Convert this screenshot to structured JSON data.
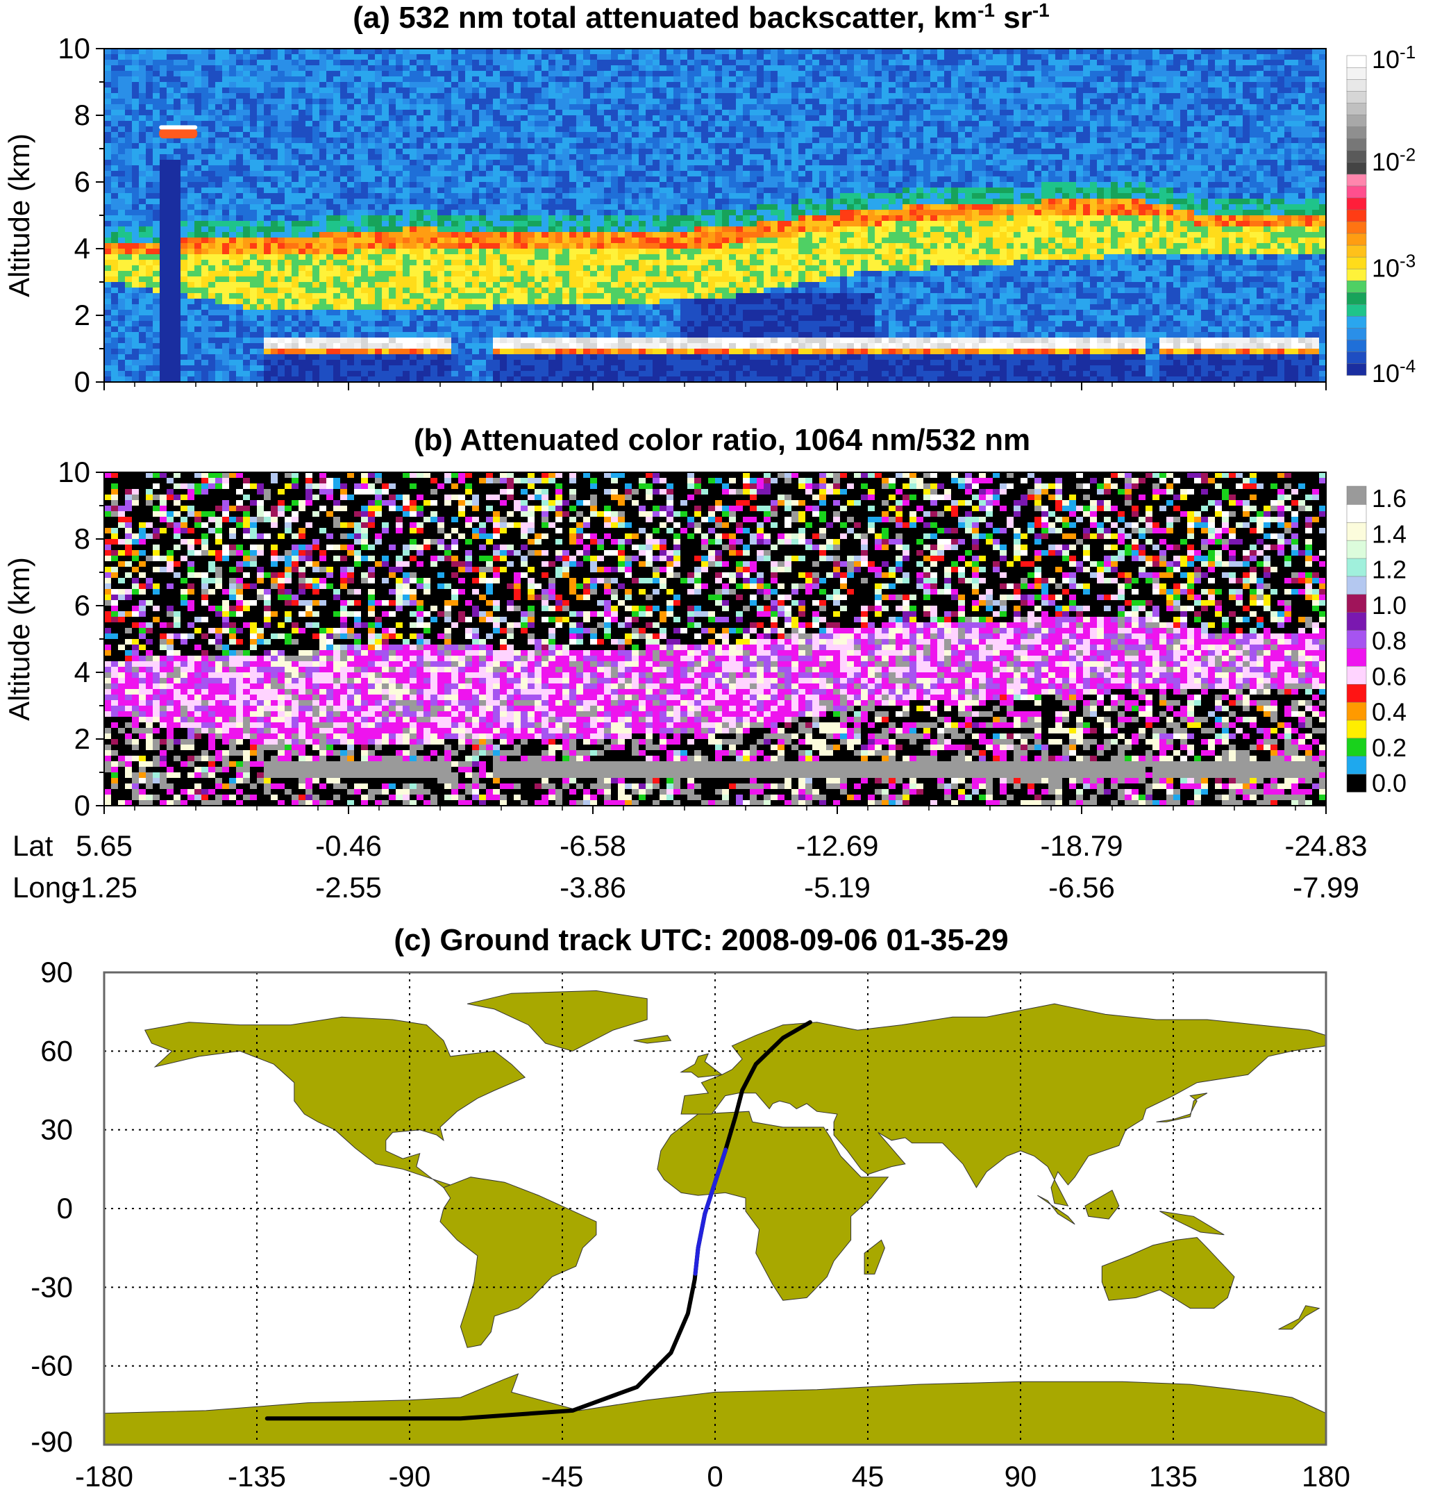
{
  "colors": {
    "plot_border": "#000000",
    "land": "#a8a800",
    "track_black": "#000000",
    "track_blue": "#2222dd",
    "grid": "#000000"
  },
  "chart_data": [
    {
      "id": "panel_a",
      "type": "heatmap",
      "title_prefix": "(a) 532 nm  total  attenuated backscatter, km",
      "title_sup1": "-1",
      "title_mid": " sr",
      "title_sup2": "-1",
      "ylabel": "Altitude (km)",
      "ylim": [
        0,
        10
      ],
      "yticks": [
        "0",
        "2",
        "4",
        "6",
        "8",
        "10"
      ],
      "colorbar": {
        "scale": "log",
        "range": [
          0.0001,
          0.1
        ],
        "labels": [
          {
            "base": "10",
            "exp": "-1",
            "value": 0.1
          },
          {
            "base": "10",
            "exp": "-2",
            "value": 0.01
          },
          {
            "base": "10",
            "exp": "-3",
            "value": 0.001
          },
          {
            "base": "10",
            "exp": "-4",
            "value": 0.0001
          }
        ],
        "colors": [
          "#1a2ea0",
          "#1e4ec2",
          "#1f6fd8",
          "#2a8fe8",
          "#2aa6ee",
          "#1fc48a",
          "#17a35a",
          "#4fd064",
          "#fff23a",
          "#ffdc1a",
          "#ffc11a",
          "#ff9d12",
          "#ff7412",
          "#ff3c14",
          "#ff1e3a",
          "#ff4f8e",
          "#ff86ad",
          "#444444",
          "#5a5a5a",
          "#777777",
          "#8f8f8f",
          "#a8a8a8",
          "#c0c0c0",
          "#d6d6d6",
          "#e8e8e8",
          "#f3f3f3",
          "#ffffff"
        ]
      },
      "features": {
        "aerosol_layer": {
          "base_km": [
            3.0,
            2.2,
            2.2,
            2.3,
            2.5,
            3.3,
            3.6,
            3.8,
            3.8
          ],
          "top_km": [
            4.2,
            4.3,
            4.6,
            4.5,
            4.6,
            5.2,
            5.4,
            5.5,
            5.0
          ],
          "x_frac": [
            0.0,
            0.12,
            0.25,
            0.38,
            0.5,
            0.62,
            0.75,
            0.84,
            0.9
          ]
        },
        "cloud_top_km": 1.3,
        "high_cloud_km": 7.4
      }
    },
    {
      "id": "panel_b",
      "type": "heatmap",
      "title": "(b) Attenuated color ratio, 1064 nm/532 nm",
      "ylabel": "Altitude (km)",
      "ylim": [
        0,
        10
      ],
      "yticks": [
        "0",
        "2",
        "4",
        "6",
        "8",
        "10"
      ],
      "colorbar": {
        "range": [
          0.0,
          1.6
        ],
        "labels": [
          "1.6",
          "1.4",
          "1.2",
          "1.0",
          "0.8",
          "0.6",
          "0.4",
          "0.2",
          "0.0"
        ],
        "colors": [
          "#000000",
          "#1ea8ee",
          "#19d21c",
          "#ffee00",
          "#ff9a00",
          "#ff1414",
          "#ffd4ff",
          "#ee14ee",
          "#a654f0",
          "#7a18b0",
          "#a0145a",
          "#b4c8f0",
          "#a0f0dc",
          "#dcfcdc",
          "#fcfcdc",
          "#ffffff",
          "#9a9a9a"
        ]
      },
      "xticks": {
        "lat": [
          "5.65",
          "-0.46",
          "-6.58",
          "-12.69",
          "-18.79",
          "-24.83"
        ],
        "long": [
          "-1.25",
          "-2.55",
          "-3.86",
          "-5.19",
          "-6.56",
          "-7.99"
        ],
        "lat_label": "Lat",
        "long_label": "Long"
      }
    },
    {
      "id": "panel_c",
      "type": "map",
      "title": "(c) Ground track UTC: 2008-09-06 01-35-29",
      "xlim": [
        -180,
        180
      ],
      "ylim": [
        -90,
        90
      ],
      "xticks": [
        "-180",
        "-135",
        "-90",
        "-45",
        "0",
        "45",
        "90",
        "135",
        "180"
      ],
      "yticks": [
        "90",
        "60",
        "30",
        "0",
        "-30",
        "-60",
        "-90"
      ],
      "grid": "dotted",
      "ground_track": [
        [
          28,
          71
        ],
        [
          20,
          65
        ],
        [
          12,
          55
        ],
        [
          8,
          45
        ],
        [
          6,
          35
        ],
        [
          3,
          22
        ],
        [
          0,
          10
        ],
        [
          -3,
          -2
        ],
        [
          -5,
          -15
        ],
        [
          -6,
          -27
        ],
        [
          -8,
          -40
        ],
        [
          -13,
          -55
        ],
        [
          -23,
          -68
        ],
        [
          -42,
          -77
        ],
        [
          -75,
          -80
        ],
        [
          -132,
          -80
        ]
      ],
      "highlight_segment": {
        "lat_range": [
          -24.83,
          22.4
        ],
        "color": "blue"
      }
    }
  ]
}
